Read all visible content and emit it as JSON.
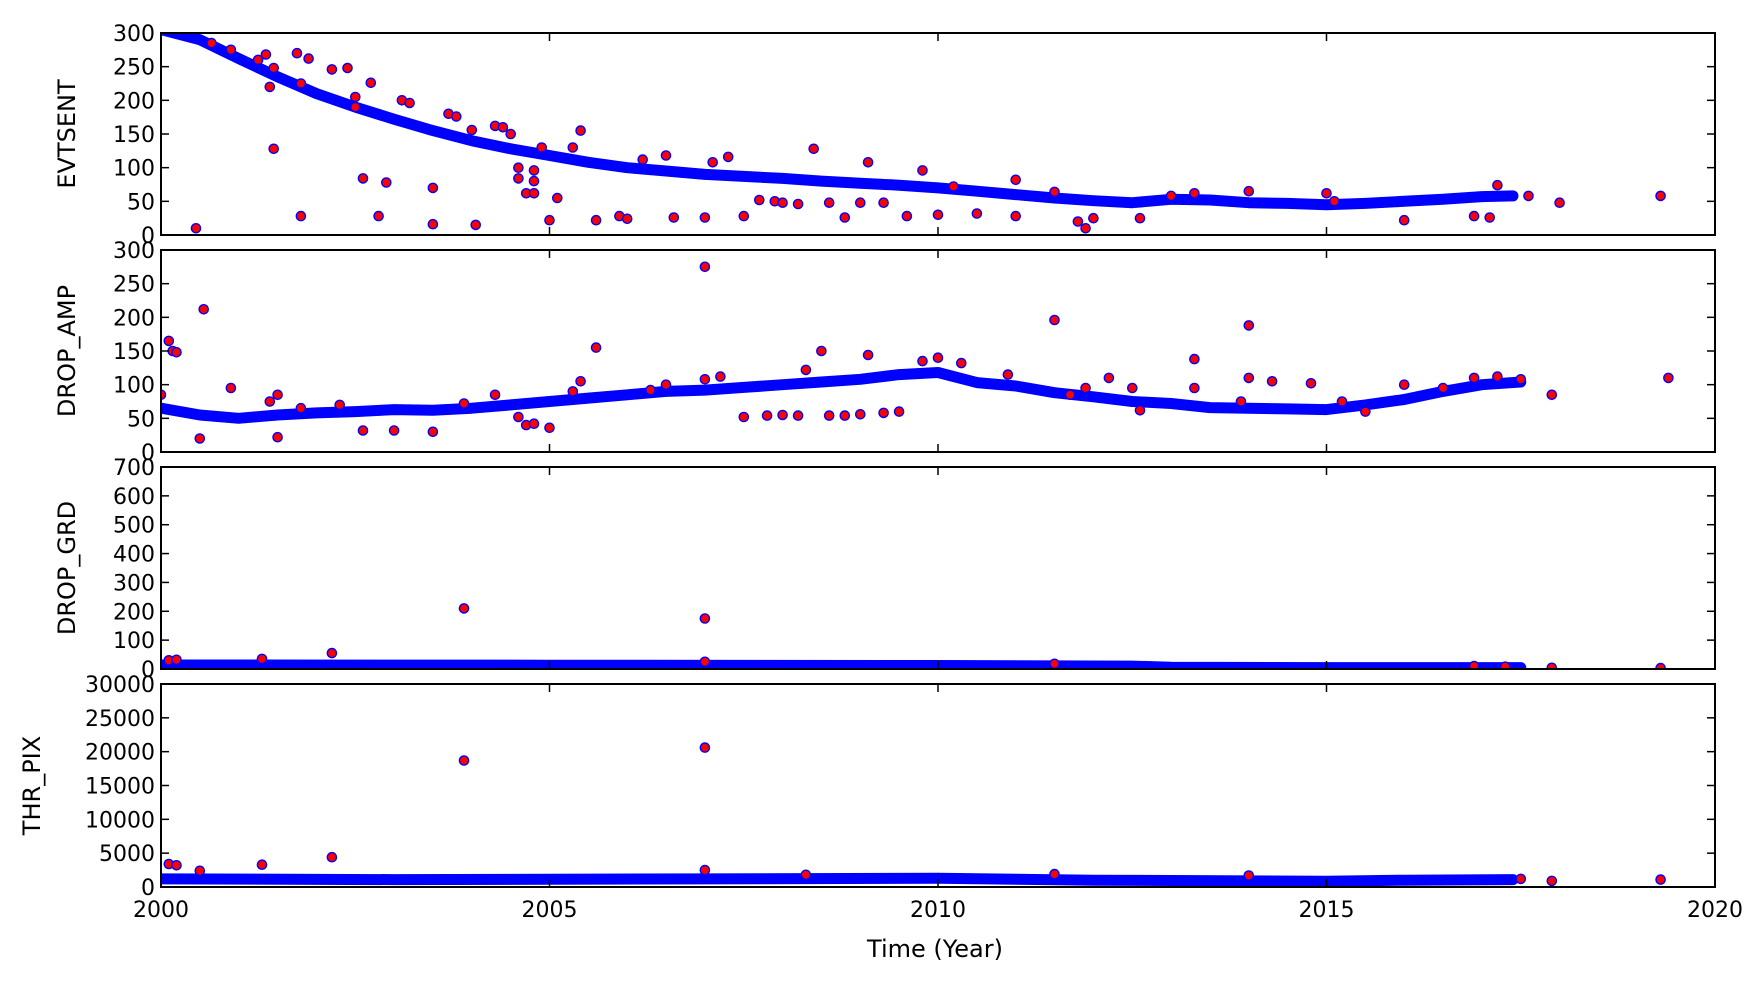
{
  "chart_data": {
    "type": "scatter",
    "xlabel": "Time (Year)",
    "xlim": [
      2000,
      2020
    ],
    "xticks": [
      2000,
      2005,
      2010,
      2015,
      2020
    ],
    "colors": {
      "marker_fill": "#ff0000",
      "marker_edge": "#0000ff",
      "trend": "#0000ff"
    },
    "panels": [
      {
        "ylabel": "EVTSENT",
        "ylim": [
          0,
          300
        ],
        "yticks": [
          0,
          50,
          100,
          150,
          200,
          250,
          300
        ],
        "trend": [
          [
            2000.0,
            305
          ],
          [
            2000.5,
            290
          ],
          [
            2001,
            262
          ],
          [
            2001.5,
            235
          ],
          [
            2002,
            210
          ],
          [
            2002.5,
            190
          ],
          [
            2003,
            172
          ],
          [
            2003.5,
            155
          ],
          [
            2004,
            140
          ],
          [
            2004.5,
            128
          ],
          [
            2005,
            118
          ],
          [
            2005.5,
            108
          ],
          [
            2006,
            100
          ],
          [
            2006.5,
            95
          ],
          [
            2007,
            90
          ],
          [
            2007.5,
            87
          ],
          [
            2008,
            84
          ],
          [
            2008.5,
            80
          ],
          [
            2009,
            77
          ],
          [
            2009.5,
            74
          ],
          [
            2010,
            70
          ],
          [
            2010.5,
            65
          ],
          [
            2011,
            60
          ],
          [
            2011.5,
            55
          ],
          [
            2012,
            51
          ],
          [
            2012.5,
            48
          ],
          [
            2013,
            53
          ],
          [
            2013.5,
            52
          ],
          [
            2014,
            48
          ],
          [
            2014.5,
            47
          ],
          [
            2015,
            45
          ],
          [
            2015.5,
            47
          ],
          [
            2016,
            50
          ],
          [
            2016.5,
            53
          ],
          [
            2017,
            57
          ],
          [
            2017.4,
            58
          ]
        ],
        "points": [
          [
            2000.45,
            10
          ],
          [
            2000.65,
            285
          ],
          [
            2000.9,
            275
          ],
          [
            2001.25,
            260
          ],
          [
            2001.35,
            268
          ],
          [
            2001.4,
            220
          ],
          [
            2001.45,
            248
          ],
          [
            2001.45,
            128
          ],
          [
            2001.75,
            270
          ],
          [
            2001.8,
            225
          ],
          [
            2001.8,
            28
          ],
          [
            2001.9,
            262
          ],
          [
            2002.2,
            246
          ],
          [
            2002.4,
            248
          ],
          [
            2002.5,
            205
          ],
          [
            2002.5,
            190
          ],
          [
            2002.6,
            84
          ],
          [
            2002.7,
            226
          ],
          [
            2002.8,
            28
          ],
          [
            2002.9,
            78
          ],
          [
            2003.1,
            200
          ],
          [
            2003.2,
            196
          ],
          [
            2003.5,
            70
          ],
          [
            2003.5,
            16
          ],
          [
            2003.7,
            180
          ],
          [
            2003.8,
            176
          ],
          [
            2004.0,
            156
          ],
          [
            2004.05,
            15
          ],
          [
            2004.3,
            162
          ],
          [
            2004.4,
            160
          ],
          [
            2004.5,
            150
          ],
          [
            2004.6,
            84
          ],
          [
            2004.6,
            100
          ],
          [
            2004.7,
            62
          ],
          [
            2004.8,
            96
          ],
          [
            2004.8,
            80
          ],
          [
            2004.8,
            62
          ],
          [
            2004.9,
            130
          ],
          [
            2005.0,
            22
          ],
          [
            2005.1,
            55
          ],
          [
            2005.3,
            130
          ],
          [
            2005.4,
            155
          ],
          [
            2005.6,
            22
          ],
          [
            2005.9,
            28
          ],
          [
            2006.0,
            24
          ],
          [
            2006.2,
            112
          ],
          [
            2006.5,
            118
          ],
          [
            2006.6,
            26
          ],
          [
            2007.0,
            26
          ],
          [
            2007.1,
            108
          ],
          [
            2007.3,
            116
          ],
          [
            2007.5,
            28
          ],
          [
            2007.7,
            52
          ],
          [
            2007.9,
            50
          ],
          [
            2008.0,
            48
          ],
          [
            2008.2,
            46
          ],
          [
            2008.4,
            128
          ],
          [
            2008.6,
            48
          ],
          [
            2008.8,
            26
          ],
          [
            2009.0,
            48
          ],
          [
            2009.1,
            108
          ],
          [
            2009.3,
            48
          ],
          [
            2009.6,
            28
          ],
          [
            2009.8,
            96
          ],
          [
            2010.0,
            30
          ],
          [
            2010.2,
            72
          ],
          [
            2010.5,
            32
          ],
          [
            2011.0,
            82
          ],
          [
            2011.0,
            28
          ],
          [
            2011.5,
            64
          ],
          [
            2011.8,
            20
          ],
          [
            2011.9,
            10
          ],
          [
            2012.0,
            25
          ],
          [
            2012.6,
            25
          ],
          [
            2013.0,
            58
          ],
          [
            2013.3,
            62
          ],
          [
            2014.0,
            65
          ],
          [
            2015.0,
            62
          ],
          [
            2015.1,
            50
          ],
          [
            2016.0,
            22
          ],
          [
            2016.9,
            28
          ],
          [
            2017.1,
            26
          ],
          [
            2017.2,
            74
          ],
          [
            2017.6,
            58
          ],
          [
            2018.0,
            48
          ],
          [
            2019.3,
            58
          ]
        ]
      },
      {
        "ylabel": "DROP_AMP",
        "ylim": [
          0,
          300
        ],
        "yticks": [
          0,
          50,
          100,
          150,
          200,
          250,
          300
        ],
        "trend": [
          [
            2000.0,
            65
          ],
          [
            2000.5,
            55
          ],
          [
            2001,
            50
          ],
          [
            2001.5,
            55
          ],
          [
            2002,
            58
          ],
          [
            2002.5,
            60
          ],
          [
            2003,
            63
          ],
          [
            2003.5,
            62
          ],
          [
            2004,
            65
          ],
          [
            2004.5,
            70
          ],
          [
            2005,
            75
          ],
          [
            2005.5,
            80
          ],
          [
            2006,
            85
          ],
          [
            2006.5,
            90
          ],
          [
            2007,
            92
          ],
          [
            2007.5,
            96
          ],
          [
            2008,
            100
          ],
          [
            2008.5,
            104
          ],
          [
            2009,
            108
          ],
          [
            2009.5,
            115
          ],
          [
            2010,
            118
          ],
          [
            2010.5,
            103
          ],
          [
            2011,
            98
          ],
          [
            2011.5,
            88
          ],
          [
            2012,
            82
          ],
          [
            2012.5,
            75
          ],
          [
            2013,
            72
          ],
          [
            2013.5,
            66
          ],
          [
            2014,
            65
          ],
          [
            2014.5,
            64
          ],
          [
            2015,
            63
          ],
          [
            2015.5,
            70
          ],
          [
            2016,
            78
          ],
          [
            2016.5,
            90
          ],
          [
            2017,
            100
          ],
          [
            2017.5,
            104
          ]
        ],
        "points": [
          [
            2000.0,
            85
          ],
          [
            2000.1,
            165
          ],
          [
            2000.15,
            150
          ],
          [
            2000.2,
            148
          ],
          [
            2000.5,
            20
          ],
          [
            2000.55,
            212
          ],
          [
            2000.9,
            95
          ],
          [
            2001.4,
            75
          ],
          [
            2001.5,
            85
          ],
          [
            2001.5,
            22
          ],
          [
            2001.8,
            65
          ],
          [
            2002.3,
            70
          ],
          [
            2002.6,
            32
          ],
          [
            2003.0,
            32
          ],
          [
            2003.5,
            30
          ],
          [
            2003.9,
            72
          ],
          [
            2004.3,
            85
          ],
          [
            2004.6,
            52
          ],
          [
            2004.7,
            40
          ],
          [
            2004.8,
            42
          ],
          [
            2005.0,
            36
          ],
          [
            2005.3,
            90
          ],
          [
            2005.4,
            105
          ],
          [
            2005.6,
            155
          ],
          [
            2006.3,
            92
          ],
          [
            2006.5,
            100
          ],
          [
            2007.0,
            275
          ],
          [
            2007.0,
            108
          ],
          [
            2007.2,
            112
          ],
          [
            2007.5,
            52
          ],
          [
            2007.8,
            54
          ],
          [
            2008.0,
            55
          ],
          [
            2008.2,
            54
          ],
          [
            2008.3,
            122
          ],
          [
            2008.5,
            150
          ],
          [
            2008.6,
            54
          ],
          [
            2008.8,
            54
          ],
          [
            2009.0,
            56
          ],
          [
            2009.1,
            144
          ],
          [
            2009.3,
            58
          ],
          [
            2009.5,
            60
          ],
          [
            2009.8,
            135
          ],
          [
            2010.0,
            140
          ],
          [
            2010.3,
            132
          ],
          [
            2010.9,
            115
          ],
          [
            2011.5,
            196
          ],
          [
            2011.7,
            85
          ],
          [
            2011.9,
            95
          ],
          [
            2012.2,
            110
          ],
          [
            2012.5,
            95
          ],
          [
            2012.6,
            62
          ],
          [
            2013.3,
            138
          ],
          [
            2013.3,
            95
          ],
          [
            2013.9,
            75
          ],
          [
            2014.0,
            188
          ],
          [
            2014.0,
            110
          ],
          [
            2014.3,
            105
          ],
          [
            2014.8,
            102
          ],
          [
            2015.2,
            75
          ],
          [
            2015.5,
            60
          ],
          [
            2016.0,
            100
          ],
          [
            2016.5,
            95
          ],
          [
            2016.9,
            110
          ],
          [
            2017.2,
            112
          ],
          [
            2017.5,
            108
          ],
          [
            2017.9,
            85
          ],
          [
            2019.4,
            110
          ]
        ]
      },
      {
        "ylabel": "DROP_GRD",
        "ylim": [
          0,
          700
        ],
        "yticks": [
          0,
          100,
          200,
          300,
          400,
          500,
          600,
          700
        ],
        "trend": [
          [
            2000.0,
            14
          ],
          [
            2005,
            13
          ],
          [
            2010,
            12
          ],
          [
            2012.5,
            10
          ],
          [
            2013,
            6
          ],
          [
            2015,
            5
          ],
          [
            2017.5,
            5
          ]
        ],
        "points": [
          [
            2000.1,
            30
          ],
          [
            2000.2,
            32
          ],
          [
            2001.3,
            35
          ],
          [
            2002.2,
            55
          ],
          [
            2003.9,
            210
          ],
          [
            2007.0,
            175
          ],
          [
            2007.0,
            25
          ],
          [
            2011.5,
            18
          ],
          [
            2016.9,
            10
          ],
          [
            2017.3,
            8
          ],
          [
            2017.9,
            4
          ],
          [
            2019.3,
            3
          ]
        ]
      },
      {
        "ylabel": "THR_PIX",
        "ylim": [
          0,
          30000
        ],
        "yticks": [
          0,
          5000,
          10000,
          15000,
          20000,
          25000,
          30000
        ],
        "trend": [
          [
            2000.0,
            1200
          ],
          [
            2003,
            1100
          ],
          [
            2007,
            1200
          ],
          [
            2010,
            1300
          ],
          [
            2012,
            1000
          ],
          [
            2014,
            900
          ],
          [
            2015,
            850
          ],
          [
            2016,
            1000
          ],
          [
            2017.4,
            1100
          ]
        ],
        "points": [
          [
            2000.1,
            3400
          ],
          [
            2000.2,
            3200
          ],
          [
            2000.5,
            2400
          ],
          [
            2001.3,
            3300
          ],
          [
            2002.2,
            4400
          ],
          [
            2003.9,
            18700
          ],
          [
            2007.0,
            20600
          ],
          [
            2007.0,
            2500
          ],
          [
            2008.3,
            1800
          ],
          [
            2011.5,
            1900
          ],
          [
            2014.0,
            1700
          ],
          [
            2017.5,
            1200
          ],
          [
            2017.9,
            900
          ],
          [
            2019.3,
            1100
          ]
        ]
      }
    ]
  }
}
